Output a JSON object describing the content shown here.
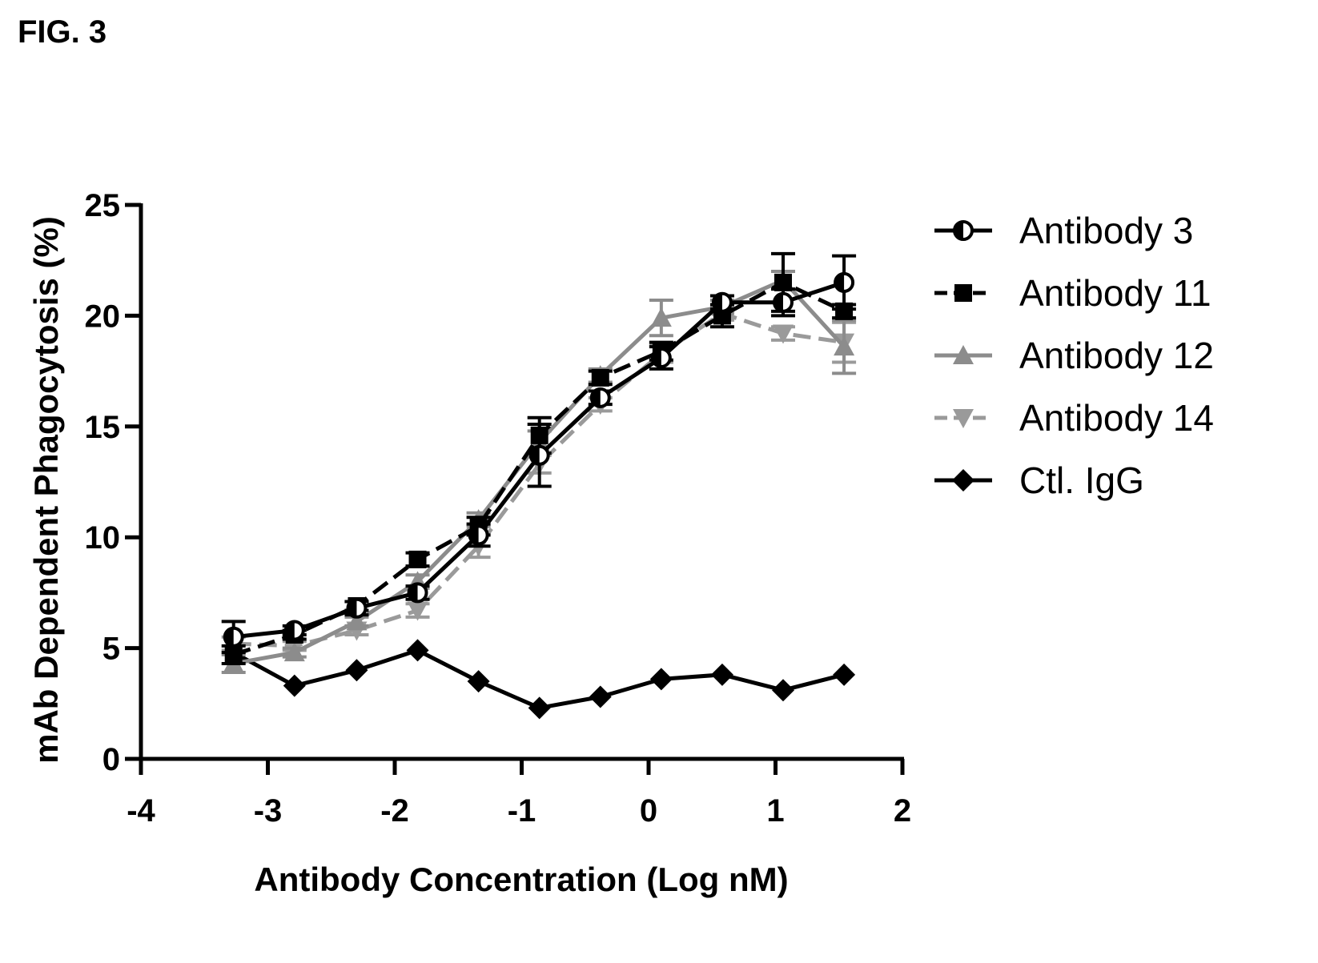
{
  "figure_label": "FIG. 3",
  "chart_data": {
    "type": "line",
    "xlabel": "Antibody Concentration (Log nM)",
    "ylabel": "mAb Dependent Phagocytosis (%)",
    "xlim": [
      -4,
      2
    ],
    "ylim": [
      0,
      25
    ],
    "x_ticks": [
      -4,
      -3,
      -2,
      -1,
      0,
      1,
      2
    ],
    "y_ticks": [
      0,
      5,
      10,
      15,
      20,
      25
    ],
    "x_tick_labels": [
      "-4",
      "-3",
      "-2",
      "-1",
      "0",
      "1",
      "2"
    ],
    "y_tick_labels": [
      "0",
      "5",
      "10",
      "15",
      "20",
      "25"
    ],
    "grid": false,
    "legend_position": "right",
    "x": [
      -3.27,
      -2.79,
      -2.3,
      -1.82,
      -1.34,
      -0.86,
      -0.38,
      0.1,
      0.58,
      1.06,
      1.54
    ],
    "series": [
      {
        "name": "Antibody 3",
        "color": "#000000",
        "dash": "solid",
        "marker": "half-circle",
        "values": [
          5.5,
          5.8,
          6.8,
          7.5,
          10.1,
          13.7,
          16.3,
          18.1,
          20.6,
          20.6,
          21.5
        ],
        "errors": [
          0.7,
          0.2,
          0.3,
          0.3,
          0.5,
          1.4,
          0.3,
          0.5,
          0.3,
          0.6,
          1.2
        ]
      },
      {
        "name": "Antibody 11",
        "color": "#000000",
        "dash": "dashed",
        "marker": "square",
        "values": [
          4.7,
          5.6,
          6.9,
          9.0,
          10.5,
          14.6,
          17.2,
          18.4,
          20.0,
          21.5,
          20.2
        ],
        "errors": [
          0.4,
          0.2,
          0.2,
          0.3,
          0.4,
          0.8,
          0.3,
          0.4,
          0.5,
          1.3,
          0.3
        ]
      },
      {
        "name": "Antibody 12",
        "color": "#8c8c8c",
        "dash": "solid",
        "marker": "triangle-up",
        "values": [
          4.3,
          4.8,
          6.2,
          8.0,
          10.8,
          14.3,
          17.3,
          19.9,
          20.4,
          21.6,
          18.6
        ],
        "errors": [
          0.4,
          0.2,
          0.2,
          0.3,
          0.3,
          0.5,
          0.3,
          0.8,
          0.3,
          0.4,
          1.2
        ]
      },
      {
        "name": "Antibody 14",
        "color": "#9a9a9a",
        "dash": "dashed",
        "marker": "triangle-down",
        "values": [
          5.2,
          5.1,
          5.8,
          6.7,
          9.6,
          13.3,
          16.0,
          18.3,
          20.1,
          19.2,
          18.8
        ],
        "errors": [
          0.3,
          0.2,
          0.2,
          0.3,
          0.5,
          0.4,
          0.3,
          0.4,
          0.3,
          0.3,
          0.9
        ]
      },
      {
        "name": "Ctl. IgG",
        "color": "#000000",
        "dash": "solid",
        "marker": "diamond",
        "values": [
          4.8,
          3.3,
          4.0,
          4.9,
          3.5,
          2.3,
          2.8,
          3.6,
          3.8,
          3.1,
          3.8
        ],
        "errors": []
      }
    ]
  }
}
